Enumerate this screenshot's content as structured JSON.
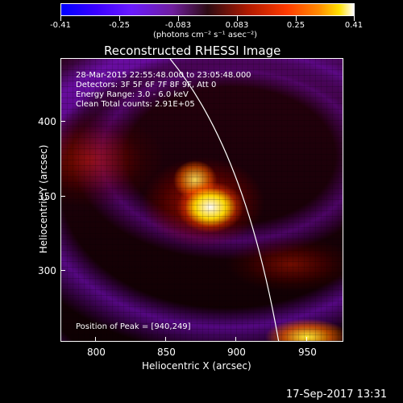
{
  "colorbar": {
    "ticks": [
      "-0.41",
      "-0.25",
      "-0.083",
      "0.083",
      "0.25",
      "0.41"
    ],
    "unit": "(photons cm⁻² s⁻¹ asec⁻²)",
    "colors": [
      "#0000ff",
      "#6a1bff",
      "#2b0a12",
      "#ff3a00",
      "#ffe100",
      "#ffffff"
    ]
  },
  "plot": {
    "title": "Reconstructed RHESSI Image",
    "xlabel": "Heliocentric X (arcsec)",
    "ylabel": "Heliocentric Y (arcsec)",
    "xticks": [
      "800",
      "850",
      "900",
      "950"
    ],
    "yticks": [
      "400",
      "350",
      "300"
    ],
    "xlim": [
      780,
      970
    ],
    "ylim": [
      250,
      440
    ]
  },
  "info": {
    "line1": "28-Mar-2015 22:55:48.000 to 23:05:48.000",
    "line2": "Detectors: 3F 5F 6F 7F 8F 9F, Att 0",
    "line3": "Energy Range: 3.0 - 6.0 keV",
    "line4": "Clean    Total counts: 2.91E+05",
    "peak": "Position of Peak = [940,249]"
  },
  "footer": {
    "date": "17-Sep-2017 13:31"
  }
}
